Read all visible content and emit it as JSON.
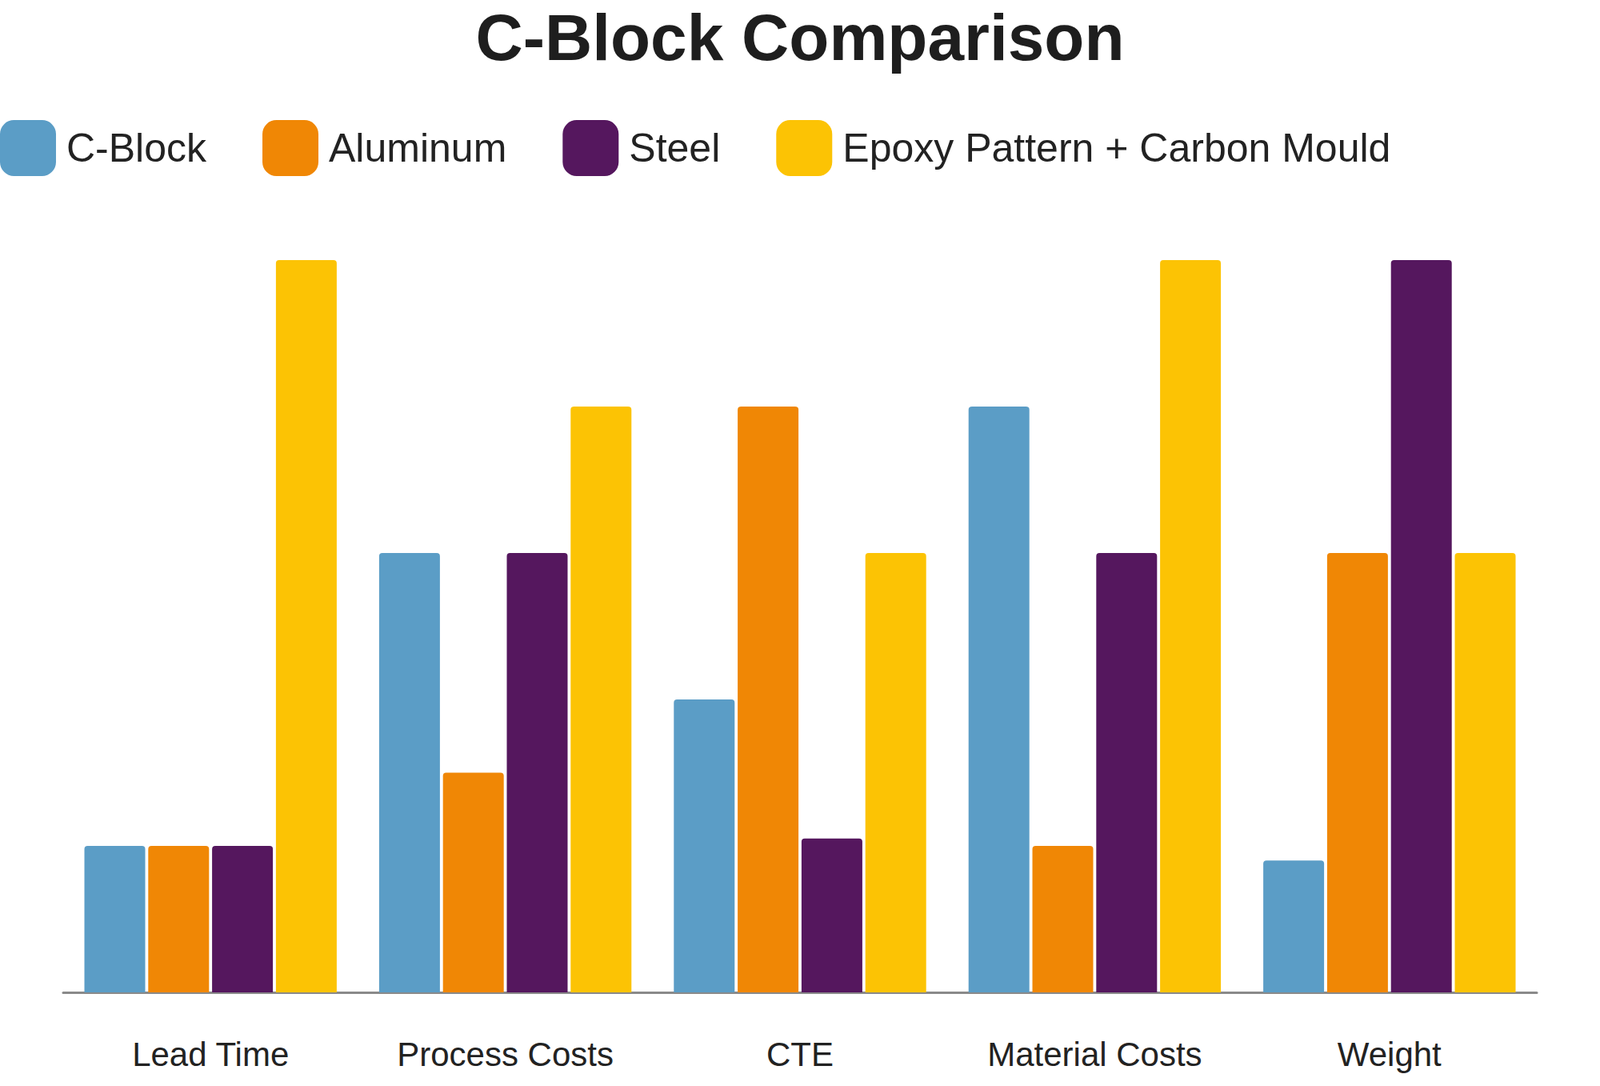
{
  "chart_data": {
    "type": "bar",
    "title": "C-Block Comparison",
    "categories": [
      "Lead Time",
      "Process Costs",
      "CTE",
      "Material Costs",
      "Weight"
    ],
    "series": [
      {
        "name": "C-Block",
        "color": "#5b9dc6",
        "values": [
          1,
          3,
          2,
          4,
          0.9
        ]
      },
      {
        "name": "Aluminum",
        "color": "#f08705",
        "values": [
          1,
          1.5,
          4,
          1,
          3
        ]
      },
      {
        "name": "Steel",
        "color": "#55175e",
        "values": [
          1,
          3,
          1.05,
          3,
          5
        ]
      },
      {
        "name": "Epoxy Pattern + Carbon Mould",
        "color": "#fcc304",
        "values": [
          5,
          4,
          3,
          5,
          3
        ]
      }
    ],
    "ylim": [
      0,
      5
    ],
    "tick_labels": "x",
    "grid": false,
    "legend": "top"
  }
}
